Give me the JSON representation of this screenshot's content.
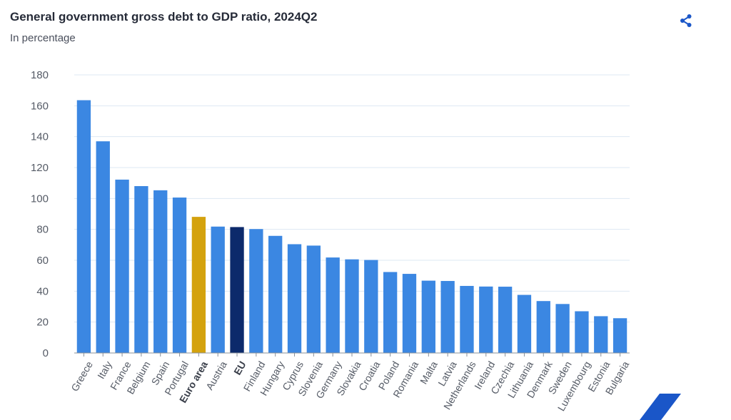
{
  "header": {
    "title": "General government gross debt to GDP ratio, 2024Q2",
    "subtitle": "In percentage"
  },
  "toolbar": {
    "share_icon": "share-icon"
  },
  "colors": {
    "default_bar": "#3b87e2",
    "euro_area_bar": "#d4a20d",
    "eu_bar": "#0c2a6b",
    "grid": "#dde8f3",
    "axis_text": "#555b66",
    "accent": "#1a56c8"
  },
  "chart_data": {
    "type": "bar",
    "title": "General government gross debt to GDP ratio, 2024Q2",
    "subtitle": "In percentage",
    "xlabel": "",
    "ylabel": "",
    "ylim": [
      0,
      180
    ],
    "yticks": [
      0,
      20,
      40,
      60,
      80,
      100,
      120,
      140,
      160,
      180
    ],
    "grid": true,
    "categories": [
      "Greece",
      "Italy",
      "France",
      "Belgium",
      "Spain",
      "Portugal",
      "Euro area",
      "Austria",
      "EU",
      "Finland",
      "Hungary",
      "Cyprus",
      "Slovenia",
      "Germany",
      "Slovakia",
      "Croatia",
      "Poland",
      "Romania",
      "Malta",
      "Latvia",
      "Netherlands",
      "Ireland",
      "Czechia",
      "Lithuania",
      "Denmark",
      "Sweden",
      "Luxembourg",
      "Estonia",
      "Bulgaria"
    ],
    "values": [
      163.6,
      137.0,
      112.2,
      108.0,
      105.3,
      100.6,
      88.1,
      81.8,
      81.5,
      80.2,
      75.8,
      70.4,
      69.5,
      61.8,
      60.6,
      60.2,
      52.4,
      51.2,
      46.8,
      46.6,
      43.4,
      43.0,
      42.9,
      37.6,
      33.6,
      31.7,
      27.0,
      23.8,
      22.5
    ],
    "highlight": {
      "Euro area": "euro_area_bar",
      "EU": "eu_bar"
    },
    "bold_categories": [
      "Euro area",
      "EU"
    ]
  }
}
